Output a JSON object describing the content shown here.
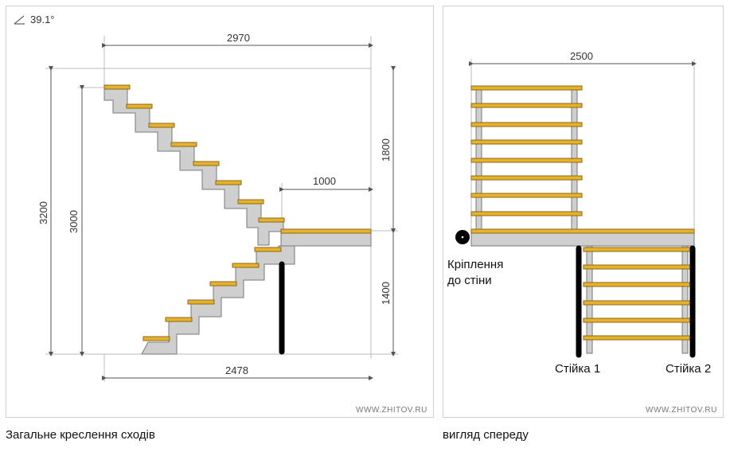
{
  "drawing": {
    "angle_label": "39.1°",
    "watermark": "WWW.ZHITOV.RU",
    "dims": {
      "top_width": "2970",
      "bottom_width": "2478",
      "landing_width": "1000",
      "total_height": "3200",
      "inner_height": "3000",
      "upper_height": "1800",
      "lower_height": "1400"
    },
    "caption": "Загальне креслення сходів"
  },
  "front": {
    "width_dim": "2500",
    "watermark": "WWW.ZHITOV.RU",
    "wall_mount_line1": "Кріплення",
    "wall_mount_line2": "до стіни",
    "post1": "Стійка 1",
    "post2": "Стійка 2",
    "caption": "вигляд спереду"
  },
  "colors": {
    "tread": "#e7b12c",
    "tread_edge": "#8a6a1a",
    "stringer": "#cfcfcf",
    "stringer_edge": "#7a7a7a",
    "post": "#000000",
    "dim_line": "#555555"
  }
}
